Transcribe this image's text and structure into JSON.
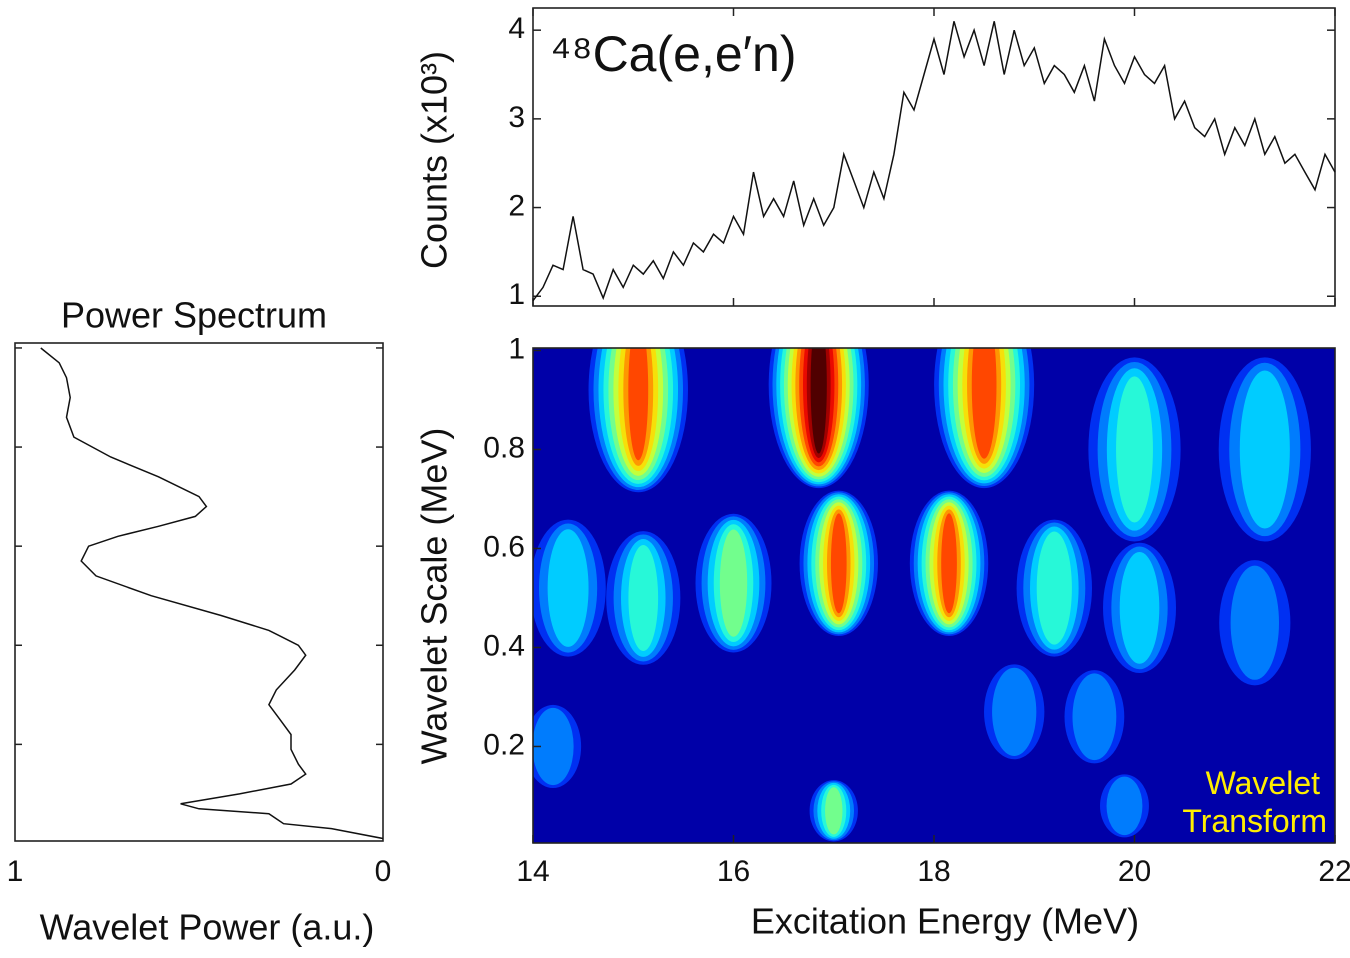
{
  "chart_data": [
    {
      "type": "line",
      "annotation": "⁴⁸Ca(e,e′n)",
      "ylabel": "Counts (x10³)",
      "color": "#111111",
      "series": [
        {
          "x": [
            14.0,
            14.1,
            14.2,
            14.3,
            14.4,
            14.5,
            14.6,
            14.7,
            14.8,
            14.9,
            15.0,
            15.1,
            15.2,
            15.3,
            15.4,
            15.5,
            15.6,
            15.7,
            15.8,
            15.9,
            16.0,
            16.1,
            16.2,
            16.3,
            16.4,
            16.5,
            16.6,
            16.7,
            16.8,
            16.9,
            17.0,
            17.1,
            17.2,
            17.3,
            17.4,
            17.5,
            17.6,
            17.7,
            17.8,
            17.9,
            18.0,
            18.1,
            18.2,
            18.3,
            18.4,
            18.5,
            18.6,
            18.7,
            18.8,
            18.9,
            19.0,
            19.1,
            19.2,
            19.3,
            19.4,
            19.5,
            19.6,
            19.7,
            19.8,
            19.9,
            20.0,
            20.1,
            20.2,
            20.3,
            20.4,
            20.5,
            20.6,
            20.7,
            20.8,
            20.9,
            21.0,
            21.1,
            21.2,
            21.3,
            21.4,
            21.5,
            21.6,
            21.7,
            21.8,
            21.9,
            22.0
          ],
          "values": [
            0.95,
            1.1,
            1.35,
            1.3,
            1.9,
            1.3,
            1.25,
            0.98,
            1.3,
            1.1,
            1.35,
            1.25,
            1.4,
            1.2,
            1.5,
            1.35,
            1.6,
            1.5,
            1.7,
            1.6,
            1.9,
            1.7,
            2.4,
            1.9,
            2.1,
            1.9,
            2.3,
            1.8,
            2.1,
            1.8,
            2.0,
            2.6,
            2.3,
            2.0,
            2.4,
            2.1,
            2.6,
            3.3,
            3.1,
            3.5,
            3.9,
            3.5,
            4.1,
            3.7,
            4.0,
            3.6,
            4.1,
            3.5,
            4.0,
            3.6,
            3.8,
            3.4,
            3.6,
            3.5,
            3.3,
            3.6,
            3.2,
            3.9,
            3.6,
            3.4,
            3.7,
            3.5,
            3.4,
            3.6,
            3.0,
            3.2,
            2.9,
            2.8,
            3.0,
            2.6,
            2.9,
            2.7,
            3.0,
            2.6,
            2.8,
            2.5,
            2.6,
            2.4,
            2.2,
            2.6,
            2.4
          ]
        }
      ],
      "ylim": [
        0.89,
        4.25
      ],
      "yticks": [
        1,
        2,
        3,
        4
      ]
    },
    {
      "type": "heatmap",
      "colormap": "jet",
      "annotation": "Wavelet Transform",
      "annotation_color": "#ffee00",
      "xlabel": "Excitation Energy (MeV)",
      "ylabel": "Wavelet Scale (MeV)",
      "xlim": [
        14,
        22
      ],
      "xticks": [
        14,
        16,
        18,
        20,
        22
      ],
      "ylim": [
        0.005,
        1.005
      ],
      "yticks": [
        0.2,
        0.4,
        0.6,
        0.8,
        1
      ],
      "peaks": [
        {
          "x": 15.05,
          "y": 0.92,
          "value": 0.75
        },
        {
          "x": 16.85,
          "y": 0.93,
          "value": 1.0
        },
        {
          "x": 18.5,
          "y": 0.93,
          "value": 0.8
        },
        {
          "x": 20.0,
          "y": 0.8,
          "value": 0.35
        },
        {
          "x": 21.3,
          "y": 0.8,
          "value": 0.3
        },
        {
          "x": 14.35,
          "y": 0.52,
          "value": 0.3
        },
        {
          "x": 15.1,
          "y": 0.5,
          "value": 0.35
        },
        {
          "x": 16.0,
          "y": 0.53,
          "value": 0.45
        },
        {
          "x": 17.05,
          "y": 0.57,
          "value": 0.75
        },
        {
          "x": 18.15,
          "y": 0.57,
          "value": 0.75
        },
        {
          "x": 19.2,
          "y": 0.52,
          "value": 0.4
        },
        {
          "x": 20.05,
          "y": 0.48,
          "value": 0.3
        },
        {
          "x": 21.2,
          "y": 0.45,
          "value": 0.2
        },
        {
          "x": 14.2,
          "y": 0.2,
          "value": 0.25
        },
        {
          "x": 18.8,
          "y": 0.27,
          "value": 0.25
        },
        {
          "x": 19.6,
          "y": 0.26,
          "value": 0.25
        },
        {
          "x": 17.0,
          "y": 0.07,
          "value": 0.45
        },
        {
          "x": 19.9,
          "y": 0.08,
          "value": 0.25
        }
      ]
    },
    {
      "type": "line",
      "title": "Power Spectrum",
      "xlabel": "Wavelet Power (a.u.)",
      "color": "#111111",
      "xlim": [
        1,
        0
      ],
      "xticks": [
        1,
        0
      ],
      "ylim": [
        0.005,
        1.01
      ],
      "series": [
        {
          "x": [
            0.93,
            0.88,
            0.86,
            0.85,
            0.86,
            0.84,
            0.74,
            0.61,
            0.5,
            0.48,
            0.51,
            0.61,
            0.72,
            0.8,
            0.82,
            0.78,
            0.63,
            0.44,
            0.31,
            0.23,
            0.21,
            0.24,
            0.29,
            0.31,
            0.28,
            0.25,
            0.25,
            0.23,
            0.21,
            0.25,
            0.39,
            0.55,
            0.5,
            0.31,
            0.29,
            0.27,
            0.14,
            0
          ],
          "y": [
            1.0,
            0.97,
            0.94,
            0.9,
            0.86,
            0.82,
            0.78,
            0.74,
            0.7,
            0.68,
            0.66,
            0.64,
            0.62,
            0.6,
            0.57,
            0.54,
            0.5,
            0.46,
            0.43,
            0.4,
            0.38,
            0.35,
            0.31,
            0.28,
            0.25,
            0.22,
            0.19,
            0.16,
            0.14,
            0.12,
            0.1,
            0.08,
            0.07,
            0.06,
            0.05,
            0.04,
            0.03,
            0.01
          ]
        }
      ]
    }
  ]
}
